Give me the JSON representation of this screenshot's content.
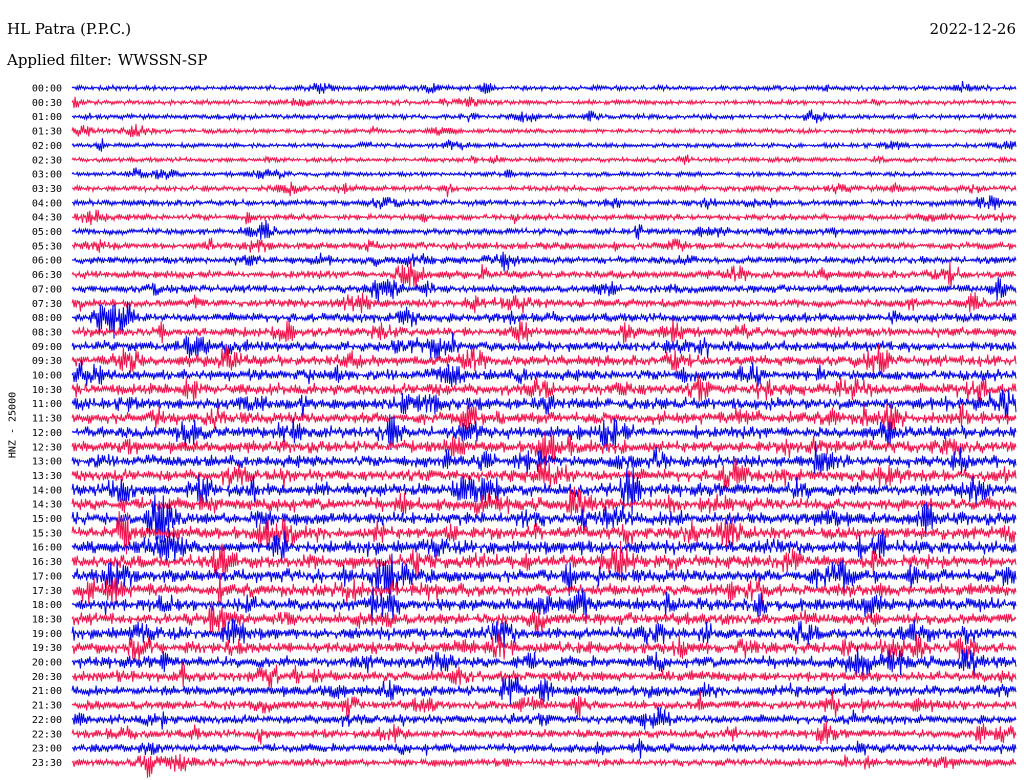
{
  "header": {
    "station": "HL Patra (P.P.C.)",
    "date": "2022-12-26",
    "filter_label": "Applied filter:",
    "filter_value": "WWSSN-SP"
  },
  "chart_data": {
    "type": "line",
    "title": "HL Patra (P.P.C.)",
    "subtitle": "Applied filter: WWSSN-SP",
    "ylabel": "HNZ - 25000",
    "xlabel": "",
    "categories": [
      "00:00",
      "00:30",
      "01:00",
      "01:30",
      "02:00",
      "02:30",
      "03:00",
      "03:30",
      "04:00",
      "04:30",
      "05:00",
      "05:30",
      "06:00",
      "06:30",
      "07:00",
      "07:30",
      "08:00",
      "08:30",
      "09:00",
      "09:30",
      "10:00",
      "10:30",
      "11:00",
      "11:30",
      "12:00",
      "12:30",
      "13:00",
      "13:30",
      "14:00",
      "14:30",
      "15:00",
      "15:30",
      "16:00",
      "16:30",
      "17:00",
      "17:30",
      "18:00",
      "18:30",
      "19:00",
      "19:30",
      "20:00",
      "20:30",
      "21:00",
      "21:30",
      "22:00",
      "22:30",
      "23:00",
      "23:30"
    ],
    "trace_colors": [
      "#0000e6",
      "#f0124a"
    ],
    "activity_levels": [
      0.25,
      0.25,
      0.25,
      0.22,
      0.22,
      0.22,
      0.22,
      0.3,
      0.35,
      0.35,
      0.38,
      0.42,
      0.45,
      0.5,
      0.5,
      0.55,
      0.6,
      0.65,
      0.7,
      0.75,
      0.78,
      0.8,
      0.85,
      0.85,
      0.85,
      0.85,
      0.85,
      0.85,
      0.9,
      0.9,
      0.9,
      0.9,
      0.95,
      0.95,
      0.95,
      0.9,
      0.9,
      0.85,
      0.85,
      0.82,
      0.8,
      0.75,
      0.7,
      0.65,
      0.6,
      0.55,
      0.55,
      0.5
    ],
    "grid": false,
    "legend": "none"
  }
}
